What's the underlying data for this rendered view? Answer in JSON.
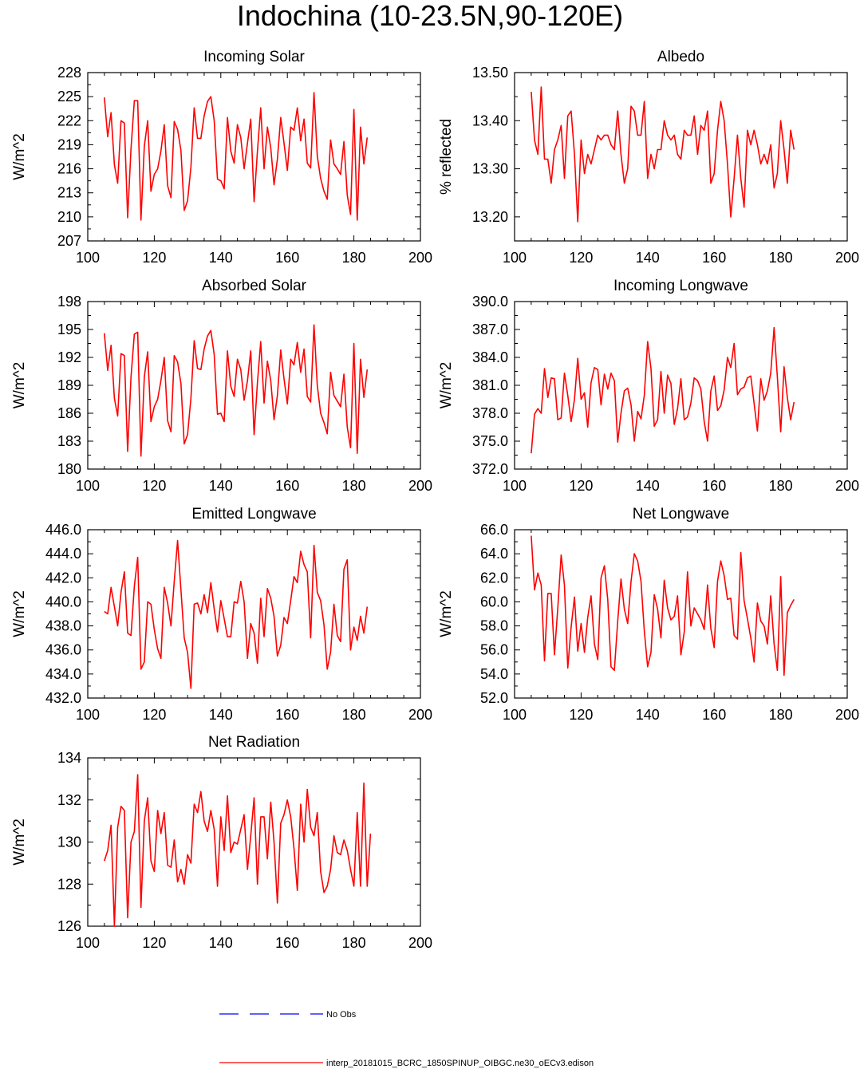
{
  "title": "Indochina (10-23.5N,90-120E)",
  "colors": {
    "model": "#ff0000",
    "obs": "#0000ff",
    "axis": "#000000"
  },
  "legend": {
    "obs_label": "No Obs",
    "model_label": "interp_20181015_BCRC_1850SPINUP_OIBGC.ne30_oECv3.edison"
  },
  "chart_data": [
    {
      "type": "line",
      "title": "Incoming Solar",
      "ylabel": "W/m^2",
      "xlim": [
        100,
        200
      ],
      "xticks": [
        100,
        120,
        140,
        160,
        180,
        200
      ],
      "ylim": [
        207,
        228
      ],
      "yticks": [
        "207",
        "210",
        "213",
        "216",
        "219",
        "222",
        "225",
        "228"
      ],
      "x_start": 105,
      "series": [
        {
          "values": [
            224.9,
            220.0,
            223.0,
            216.5,
            214.2,
            222.0,
            221.7,
            209.9,
            218.5,
            224.5,
            224.5,
            209.6,
            218.8,
            222.0,
            213.2,
            215.3,
            216.0,
            218.2,
            221.5,
            213.9,
            212.4,
            221.9,
            220.9,
            218.3,
            210.8,
            212.0,
            216.2,
            223.6,
            219.8,
            219.8,
            222.6,
            224.4,
            225.0,
            222.0,
            214.7,
            214.5,
            213.5,
            222.4,
            218.2,
            216.7,
            221.5,
            219.9,
            216.0,
            219.2,
            222.2,
            211.9,
            218.2,
            223.6,
            216.0,
            221.2,
            218.6,
            214.0,
            217.2,
            222.4,
            219.2,
            215.8,
            221.2,
            220.8,
            223.6,
            219.5,
            222.2,
            216.7,
            216.1,
            225.5,
            217.6,
            214.8,
            213.2,
            212.2,
            219.6,
            216.6,
            216.0,
            215.3,
            219.4,
            212.7,
            210.3,
            223.4,
            209.6,
            221.2,
            216.6,
            219.9
          ]
        }
      ]
    },
    {
      "type": "line",
      "title": "Albedo",
      "ylabel": "% reflected",
      "xlim": [
        100,
        200
      ],
      "xticks": [
        100,
        120,
        140,
        160,
        180,
        200
      ],
      "ylim": [
        13.15,
        13.5
      ],
      "yticks": [
        "13.20",
        "13.30",
        "13.40",
        "13.50"
      ],
      "x_start": 105,
      "series": [
        {
          "values": [
            13.46,
            13.36,
            13.33,
            13.47,
            13.32,
            13.32,
            13.27,
            13.34,
            13.36,
            13.39,
            13.28,
            13.41,
            13.42,
            13.33,
            13.19,
            13.36,
            13.29,
            13.33,
            13.31,
            13.34,
            13.37,
            13.36,
            13.37,
            13.37,
            13.35,
            13.34,
            13.42,
            13.33,
            13.27,
            13.3,
            13.43,
            13.42,
            13.37,
            13.37,
            13.44,
            13.28,
            13.33,
            13.3,
            13.34,
            13.34,
            13.4,
            13.37,
            13.36,
            13.37,
            13.33,
            13.32,
            13.38,
            13.37,
            13.37,
            13.41,
            13.33,
            13.39,
            13.38,
            13.42,
            13.27,
            13.29,
            13.38,
            13.44,
            13.4,
            13.31,
            13.2,
            13.28,
            13.37,
            13.28,
            13.22,
            13.38,
            13.35,
            13.38,
            13.35,
            13.31,
            13.33,
            13.31,
            13.35,
            13.26,
            13.29,
            13.4,
            13.34,
            13.27,
            13.38,
            13.34
          ]
        }
      ]
    },
    {
      "type": "line",
      "title": "Absorbed Solar",
      "ylabel": "W/m^2",
      "xlim": [
        100,
        200
      ],
      "xticks": [
        100,
        120,
        140,
        160,
        180,
        200
      ],
      "ylim": [
        180,
        198
      ],
      "yticks": [
        "180",
        "183",
        "186",
        "189",
        "192",
        "195",
        "198"
      ],
      "x_start": 105,
      "series": [
        {
          "values": [
            194.6,
            190.6,
            193.3,
            187.6,
            185.7,
            192.4,
            192.2,
            181.9,
            189.9,
            194.5,
            194.7,
            181.4,
            189.9,
            192.6,
            185.1,
            186.7,
            187.5,
            189.5,
            192.0,
            185.2,
            184.0,
            192.2,
            191.5,
            189.2,
            182.7,
            183.7,
            187.6,
            193.8,
            190.8,
            190.7,
            192.9,
            194.3,
            194.9,
            192.3,
            185.9,
            186.0,
            185.1,
            192.7,
            188.9,
            187.8,
            191.8,
            190.7,
            187.4,
            189.5,
            192.7,
            183.7,
            189.3,
            193.7,
            187.1,
            191.6,
            189.5,
            185.3,
            187.9,
            192.8,
            189.7,
            187.0,
            191.8,
            191.2,
            193.6,
            190.4,
            192.9,
            187.8,
            187.2,
            195.5,
            189.0,
            186.0,
            185.0,
            183.8,
            190.4,
            187.9,
            187.3,
            186.7,
            190.2,
            184.5,
            182.3,
            193.5,
            181.7,
            191.8,
            187.7,
            190.7
          ]
        }
      ]
    },
    {
      "type": "line",
      "title": "Incoming Longwave",
      "ylabel": "W/m^2",
      "xlim": [
        100,
        200
      ],
      "xticks": [
        100,
        120,
        140,
        160,
        180,
        200
      ],
      "ylim": [
        372,
        390
      ],
      "yticks": [
        "372.0",
        "375.0",
        "378.0",
        "381.0",
        "384.0",
        "387.0",
        "390.0"
      ],
      "x_start": 105,
      "series": [
        {
          "values": [
            373.7,
            377.9,
            378.5,
            378.0,
            382.8,
            379.7,
            381.8,
            381.7,
            377.3,
            377.5,
            382.3,
            379.9,
            377.1,
            379.5,
            383.9,
            379.5,
            380.2,
            376.5,
            381.3,
            382.9,
            382.7,
            378.9,
            382.2,
            380.6,
            382.3,
            381.5,
            374.9,
            378.0,
            380.4,
            380.7,
            378.9,
            375.0,
            378.2,
            377.4,
            379.9,
            385.7,
            382.8,
            376.6,
            377.3,
            382.5,
            378.0,
            382.1,
            381.2,
            376.8,
            378.5,
            381.7,
            377.3,
            377.6,
            379.1,
            381.8,
            381.5,
            380.6,
            377.1,
            375.0,
            380.4,
            382.0,
            378.3,
            378.8,
            380.5,
            384.0,
            382.9,
            385.5,
            380.0,
            380.6,
            380.8,
            381.8,
            382.0,
            379.1,
            376.1,
            381.7,
            379.4,
            380.4,
            382.3,
            387.2,
            381.9,
            376.0,
            383.0,
            379.7,
            377.3,
            379.2
          ]
        }
      ]
    },
    {
      "type": "line",
      "title": "Emitted Longwave",
      "ylabel": "W/m^2",
      "xlim": [
        100,
        200
      ],
      "xticks": [
        100,
        120,
        140,
        160,
        180,
        200
      ],
      "ylim": [
        432,
        446
      ],
      "yticks": [
        "432.0",
        "434.0",
        "436.0",
        "438.0",
        "440.0",
        "442.0",
        "444.0",
        "446.0"
      ],
      "x_start": 105,
      "series": [
        {
          "values": [
            439.2,
            439.0,
            441.2,
            439.6,
            438.0,
            440.8,
            442.5,
            437.4,
            437.2,
            441.3,
            443.7,
            434.4,
            435.0,
            440.0,
            439.8,
            437.7,
            436.1,
            435.3,
            441.2,
            439.9,
            438.0,
            441.7,
            445.1,
            441.0,
            437.0,
            435.8,
            432.8,
            439.8,
            439.9,
            439.0,
            440.6,
            439.1,
            441.6,
            439.4,
            437.5,
            440.1,
            438.6,
            437.1,
            437.1,
            440.0,
            439.9,
            441.7,
            440.0,
            435.3,
            438.2,
            437.4,
            434.9,
            440.3,
            437.1,
            441.1,
            440.3,
            438.8,
            435.5,
            436.4,
            438.7,
            438.2,
            440.1,
            442.1,
            441.6,
            444.2,
            443.1,
            442.5,
            437.0,
            444.7,
            440.8,
            440.1,
            438.1,
            434.4,
            435.8,
            439.8,
            437.2,
            436.7,
            442.7,
            443.5,
            436.0,
            437.9,
            436.8,
            438.8,
            437.4,
            439.6
          ]
        }
      ]
    },
    {
      "type": "line",
      "title": "Net Longwave",
      "ylabel": "W/m^2",
      "xlim": [
        100,
        200
      ],
      "xticks": [
        100,
        120,
        140,
        160,
        180,
        200
      ],
      "ylim": [
        52,
        66
      ],
      "yticks": [
        "52.0",
        "54.0",
        "56.0",
        "58.0",
        "60.0",
        "62.0",
        "64.0",
        "66.0"
      ],
      "x_start": 105,
      "series": [
        {
          "values": [
            65.5,
            61.0,
            62.4,
            61.4,
            55.1,
            60.7,
            60.7,
            55.6,
            59.5,
            63.9,
            61.4,
            54.5,
            57.9,
            60.4,
            55.9,
            58.2,
            55.8,
            58.7,
            60.5,
            56.5,
            55.2,
            62.0,
            63.0,
            60.2,
            54.6,
            54.3,
            58.4,
            61.9,
            59.4,
            58.2,
            61.7,
            64.0,
            63.4,
            61.7,
            57.6,
            54.6,
            55.8,
            60.6,
            59.4,
            57.0,
            61.8,
            59.5,
            58.5,
            58.8,
            60.5,
            55.6,
            57.5,
            62.5,
            58.0,
            59.5,
            59.0,
            58.5,
            57.7,
            61.4,
            57.8,
            56.2,
            61.7,
            63.4,
            62.2,
            60.2,
            60.3,
            57.2,
            56.9,
            64.1,
            60.1,
            58.6,
            57.0,
            55.0,
            59.9,
            58.4,
            58.0,
            56.5,
            60.5,
            56.5,
            54.3,
            62.1,
            53.9,
            59.1,
            59.7,
            60.2
          ]
        }
      ]
    },
    {
      "type": "line",
      "title": "Net Radiation",
      "ylabel": "W/m^2",
      "xlim": [
        100,
        200
      ],
      "xticks": [
        100,
        120,
        140,
        160,
        180,
        200
      ],
      "ylim": [
        126,
        134
      ],
      "yticks": [
        "126",
        "128",
        "130",
        "132",
        "134"
      ],
      "x_start": 105,
      "series": [
        {
          "values": [
            129.1,
            129.6,
            130.8,
            126.0,
            130.7,
            131.7,
            131.5,
            126.4,
            130.0,
            130.5,
            133.2,
            126.9,
            131.0,
            132.1,
            129.1,
            128.6,
            131.5,
            130.4,
            131.4,
            128.9,
            128.8,
            130.1,
            128.1,
            128.7,
            128.0,
            129.4,
            129.0,
            131.8,
            131.4,
            132.4,
            131.0,
            130.5,
            131.5,
            130.6,
            127.9,
            131.2,
            129.6,
            132.2,
            129.5,
            130.0,
            129.9,
            130.6,
            131.3,
            128.7,
            130.3,
            132.1,
            128.0,
            131.2,
            131.2,
            129.2,
            131.9,
            130.0,
            127.1,
            130.9,
            131.3,
            132.0,
            131.2,
            129.7,
            127.7,
            131.8,
            130.0,
            132.5,
            130.7,
            130.3,
            131.4,
            128.6,
            127.6,
            127.9,
            128.7,
            130.3,
            129.5,
            129.4,
            130.1,
            129.6,
            128.7,
            127.9,
            131.4,
            127.9,
            132.8,
            127.9,
            130.4
          ]
        }
      ]
    }
  ]
}
